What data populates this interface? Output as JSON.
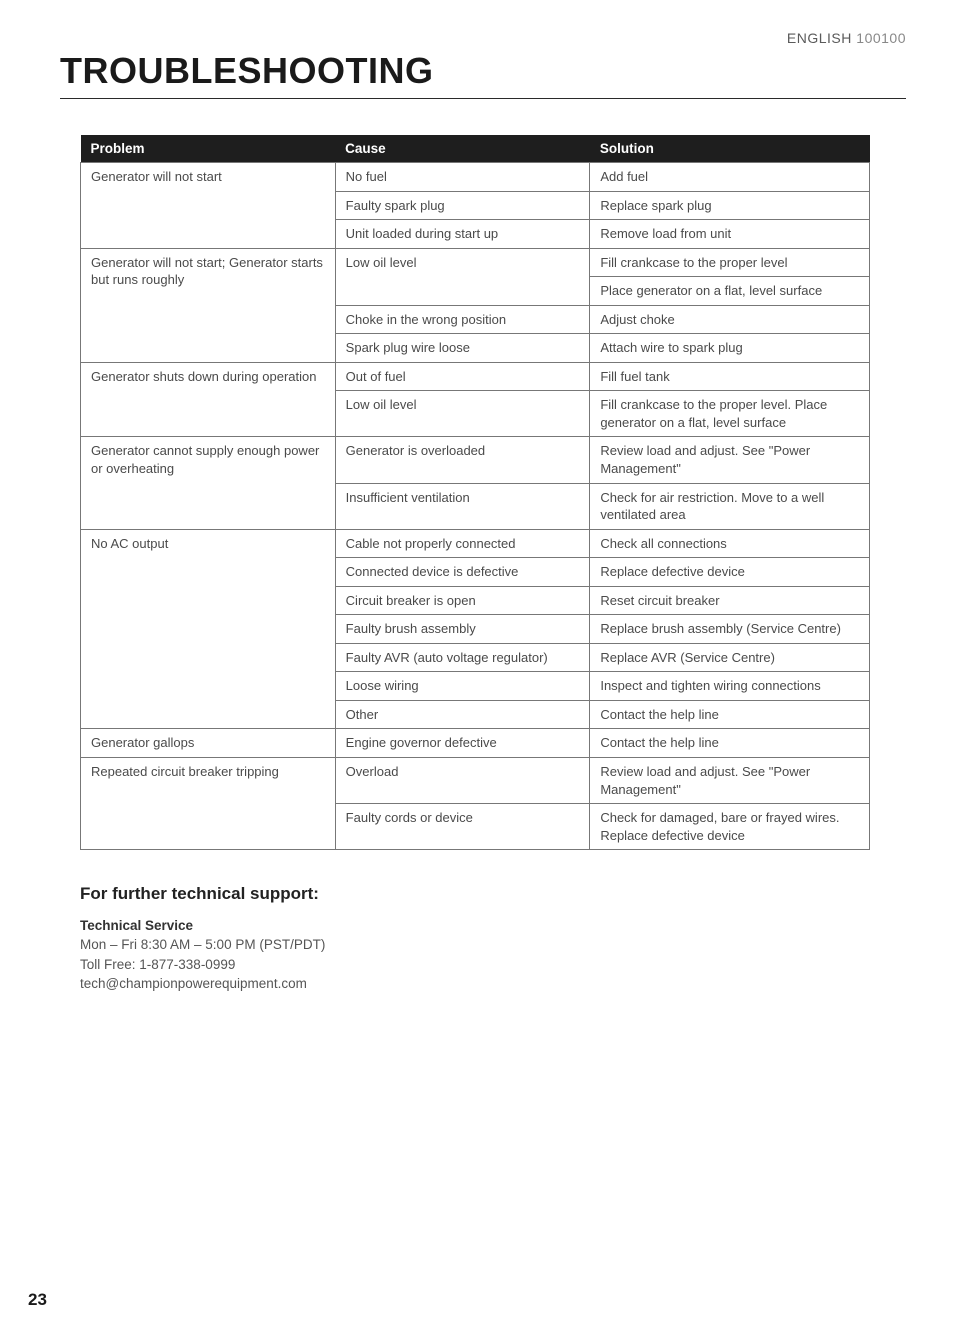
{
  "header": {
    "language": "ENGLISH",
    "model": "100100",
    "title": "TROUBLESHOOTING"
  },
  "table": {
    "columns": [
      "Problem",
      "Cause",
      "Solution"
    ],
    "groups": [
      {
        "problem": "Generator will not start",
        "rows": [
          {
            "cause": "No fuel",
            "solution": "Add fuel"
          },
          {
            "cause": "Faulty spark plug",
            "solution": "Replace spark plug"
          },
          {
            "cause": "Unit loaded during start up",
            "solution": "Remove load from unit"
          }
        ]
      },
      {
        "problem": "Generator will not start; Generator starts but runs roughly",
        "rows": [
          {
            "cause": "Low oil level",
            "solution": "Fill crankcase to the proper level",
            "rowspan_cause": 2
          },
          {
            "solution": "Place generator on a flat, level surface"
          },
          {
            "cause": "Choke in the wrong position",
            "solution": "Adjust choke"
          },
          {
            "cause": "Spark plug wire loose",
            "solution": "Attach wire to spark plug"
          }
        ]
      },
      {
        "problem": "Generator shuts down during operation",
        "rows": [
          {
            "cause": "Out of fuel",
            "solution": "Fill fuel tank"
          },
          {
            "cause": "Low oil level",
            "solution": "Fill crankcase to the proper level. Place generator on a flat, level surface"
          }
        ]
      },
      {
        "problem": "Generator cannot supply enough power or overheating",
        "rows": [
          {
            "cause": "Generator is overloaded",
            "solution": "Review load and adjust. See \"Power Management\""
          },
          {
            "cause": "Insufficient ventilation",
            "solution": "Check for air restriction. Move to a well ventilated area"
          }
        ]
      },
      {
        "problem": "No AC output",
        "rows": [
          {
            "cause": "Cable not properly connected",
            "solution": "Check all connections"
          },
          {
            "cause": "Connected device is defective",
            "solution": "Replace defective device"
          },
          {
            "cause": "Circuit breaker is open",
            "solution": "Reset circuit breaker"
          },
          {
            "cause": "Faulty brush assembly",
            "solution": "Replace brush assembly (Service Centre)"
          },
          {
            "cause": "Faulty AVR (auto voltage regulator)",
            "solution": "Replace AVR (Service Centre)"
          },
          {
            "cause": "Loose wiring",
            "solution": "Inspect and tighten wiring connections"
          },
          {
            "cause": "Other",
            "solution": "Contact the help line"
          }
        ]
      },
      {
        "problem": "Generator gallops",
        "rows": [
          {
            "cause": "Engine governor defective",
            "solution": "Contact the help line"
          }
        ]
      },
      {
        "problem": "Repeated circuit breaker tripping",
        "rows": [
          {
            "cause": "Overload",
            "solution": "Review load and adjust. See \"Power Management\""
          },
          {
            "cause": "Faulty cords or device",
            "solution": "Check for damaged, bare or frayed wires. Replace defective device"
          }
        ]
      }
    ]
  },
  "support": {
    "heading": "For further technical support:",
    "label": "Technical Service",
    "hours": "Mon – Fri 8:30 AM – 5:00 PM (PST/PDT)",
    "phone": "Toll Free: 1-877-338-0999",
    "email": "tech@championpowerequipment.com"
  },
  "page_number": "23"
}
